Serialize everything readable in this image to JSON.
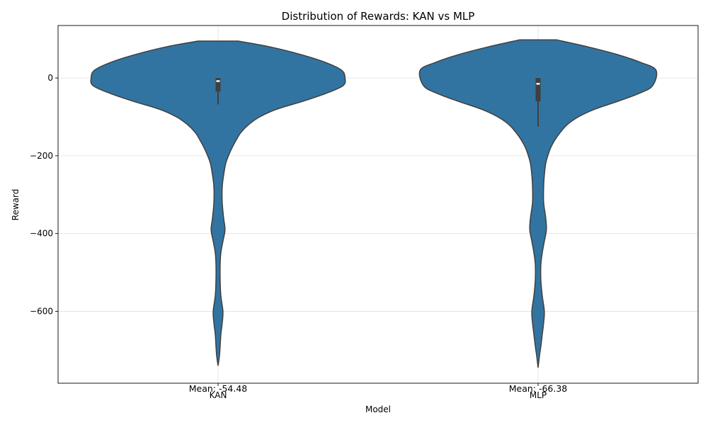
{
  "chart_data": {
    "type": "violin",
    "title": "Distribution of Rewards: KAN vs MLP",
    "xlabel": "Model",
    "ylabel": "Reward",
    "ylim": [
      -785,
      135
    ],
    "yticks": [
      0,
      -200,
      -400,
      -600
    ],
    "ytick_labels": [
      "0",
      "−200",
      "−400",
      "−600"
    ],
    "grid": true,
    "fill_color": "#3274a1",
    "edge_color": "#3f3f3f",
    "categories": [
      "KAN",
      "MLP"
    ],
    "violins": [
      {
        "category": "KAN",
        "mean_label": "Mean: -54.48",
        "quartiles": {
          "q1": -35,
          "median": -8,
          "q3": 0
        },
        "whiskers": [
          -68,
          0
        ],
        "profile": [
          [
            95,
            29
          ],
          [
            80,
            75
          ],
          [
            60,
            120
          ],
          [
            40,
            155
          ],
          [
            20,
            178
          ],
          [
            0,
            183
          ],
          [
            -20,
            180
          ],
          [
            -40,
            155
          ],
          [
            -60,
            122
          ],
          [
            -80,
            85
          ],
          [
            -100,
            60
          ],
          [
            -120,
            44
          ],
          [
            -140,
            33
          ],
          [
            -160,
            26
          ],
          [
            -180,
            20
          ],
          [
            -200,
            15
          ],
          [
            -220,
            11
          ],
          [
            -250,
            8
          ],
          [
            -280,
            6
          ],
          [
            -320,
            6
          ],
          [
            -360,
            8
          ],
          [
            -390,
            10
          ],
          [
            -420,
            7
          ],
          [
            -450,
            4
          ],
          [
            -480,
            3
          ],
          [
            -520,
            3
          ],
          [
            -560,
            4
          ],
          [
            -600,
            7
          ],
          [
            -630,
            6
          ],
          [
            -660,
            4
          ],
          [
            -690,
            3
          ],
          [
            -715,
            2
          ],
          [
            -740,
            0
          ]
        ]
      },
      {
        "category": "MLP",
        "mean_label": "Mean: -66.38",
        "quartiles": {
          "q1": -60,
          "median": -15,
          "q3": 0
        },
        "whiskers": [
          -125,
          0
        ],
        "profile": [
          [
            98,
            27
          ],
          [
            80,
            72
          ],
          [
            60,
            115
          ],
          [
            40,
            148
          ],
          [
            20,
            170
          ],
          [
            -20,
            165
          ],
          [
            -40,
            145
          ],
          [
            -60,
            115
          ],
          [
            -80,
            82
          ],
          [
            -100,
            58
          ],
          [
            -120,
            42
          ],
          [
            -140,
            32
          ],
          [
            -160,
            24
          ],
          [
            -180,
            18
          ],
          [
            -200,
            14
          ],
          [
            -220,
            11
          ],
          [
            -250,
            9
          ],
          [
            -280,
            8
          ],
          [
            -320,
            8
          ],
          [
            -360,
            11
          ],
          [
            -390,
            12
          ],
          [
            -420,
            9
          ],
          [
            -450,
            6
          ],
          [
            -480,
            4
          ],
          [
            -520,
            4
          ],
          [
            -560,
            6
          ],
          [
            -600,
            9
          ],
          [
            -630,
            8
          ],
          [
            -660,
            6
          ],
          [
            -690,
            4
          ],
          [
            -715,
            2
          ],
          [
            -745,
            0
          ]
        ]
      }
    ]
  }
}
